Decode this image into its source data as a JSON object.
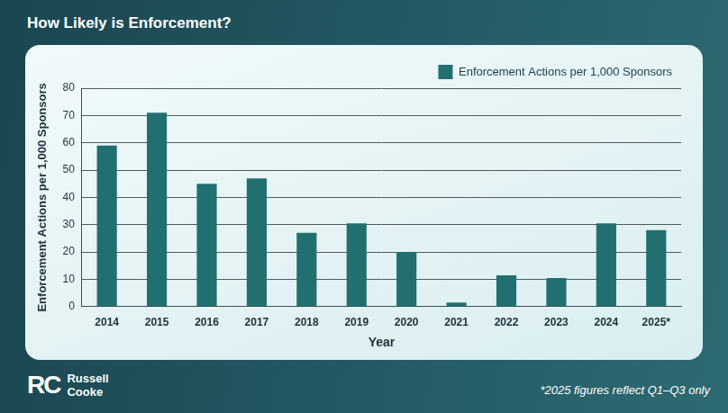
{
  "chart_data": {
    "type": "bar",
    "title": "How Likely is Enforcement?",
    "x_label": "Year",
    "y_label": "Enforcement Actions per 1,000 Sponsors",
    "categories": [
      "2014",
      "2015",
      "2016",
      "2017",
      "2018",
      "2019",
      "2020",
      "2021",
      "2022",
      "2023",
      "2024",
      "2025*"
    ],
    "series": [
      {
        "name": "Enforcement Actions per 1,000 Sponsors",
        "color": "#21706f",
        "values": [
          59,
          71,
          45,
          47,
          27,
          30.5,
          20,
          1.5,
          11.5,
          10.5,
          30.5,
          28
        ]
      }
    ],
    "ylim": [
      0,
      80
    ],
    "yticks": [
      0,
      10,
      20,
      30,
      40,
      50,
      60,
      70,
      80
    ],
    "grid": true,
    "legend": "upper right",
    "annotations": [
      "*2025 figures reflect Q1–Q3 only"
    ]
  },
  "logo": {
    "mark": "RC",
    "name": [
      "Russell",
      "Cooke"
    ]
  }
}
